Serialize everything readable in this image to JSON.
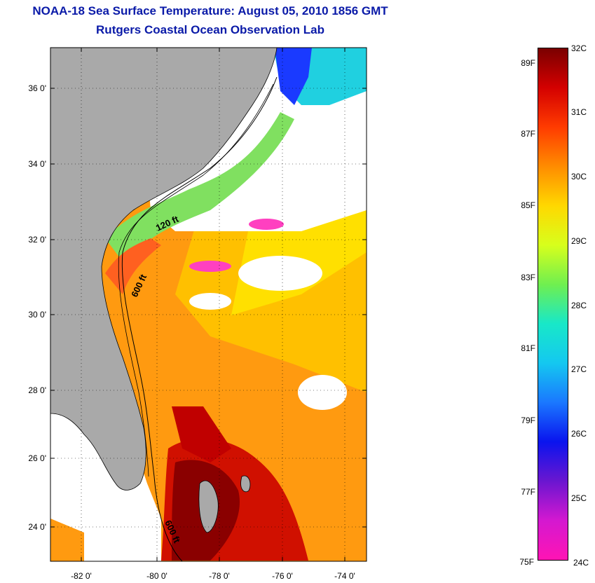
{
  "title": {
    "line1": "NOAA-18 Sea Surface Temperature:  August 05, 2010 1856 GMT",
    "line2": "Rutgers Coastal Ocean Observation Lab"
  },
  "map": {
    "lat_ticks": [
      {
        "value": 36,
        "label": "36 0'"
      },
      {
        "value": 34,
        "label": "34 0'"
      },
      {
        "value": 32,
        "label": "32 0'"
      },
      {
        "value": 30,
        "label": "30 0'"
      },
      {
        "value": 28,
        "label": "28 0'"
      },
      {
        "value": 26,
        "label": "26 0'"
      },
      {
        "value": 24,
        "label": "24 0'"
      }
    ],
    "lon_ticks": [
      {
        "value": -82,
        "label": "-82 0'"
      },
      {
        "value": -80,
        "label": "-80 0'"
      },
      {
        "value": -78,
        "label": "-78 0'"
      },
      {
        "value": -76,
        "label": "-76 0'"
      },
      {
        "value": -74,
        "label": "-74 0'"
      }
    ],
    "contour_labels": [
      {
        "id": "label-120ft-north",
        "text": "120 ft"
      },
      {
        "id": "label-600ft-north",
        "text": "600 ft"
      },
      {
        "id": "label-600ft-south",
        "text": "600 ft"
      }
    ],
    "colors": {
      "land": "#a9a9a9",
      "no_data": "#ffffff",
      "frame": "#000000"
    }
  },
  "colorbar": {
    "fahrenheit_labels": [
      "89F",
      "87F",
      "85F",
      "83F",
      "81F",
      "79F",
      "77F",
      "75F"
    ],
    "celsius_labels": [
      "32C",
      "31C",
      "30C",
      "29C",
      "28C",
      "27C",
      "26C",
      "25C",
      "24C"
    ],
    "gradient_colors": [
      "#7a0000",
      "#d40000",
      "#ff3b00",
      "#ff8c00",
      "#ffd800",
      "#d7ff1c",
      "#6fef50",
      "#18e8c8",
      "#14c8f0",
      "#1a78ff",
      "#0a14ee",
      "#6a16d0",
      "#d418d0",
      "#ff14b4"
    ]
  }
}
